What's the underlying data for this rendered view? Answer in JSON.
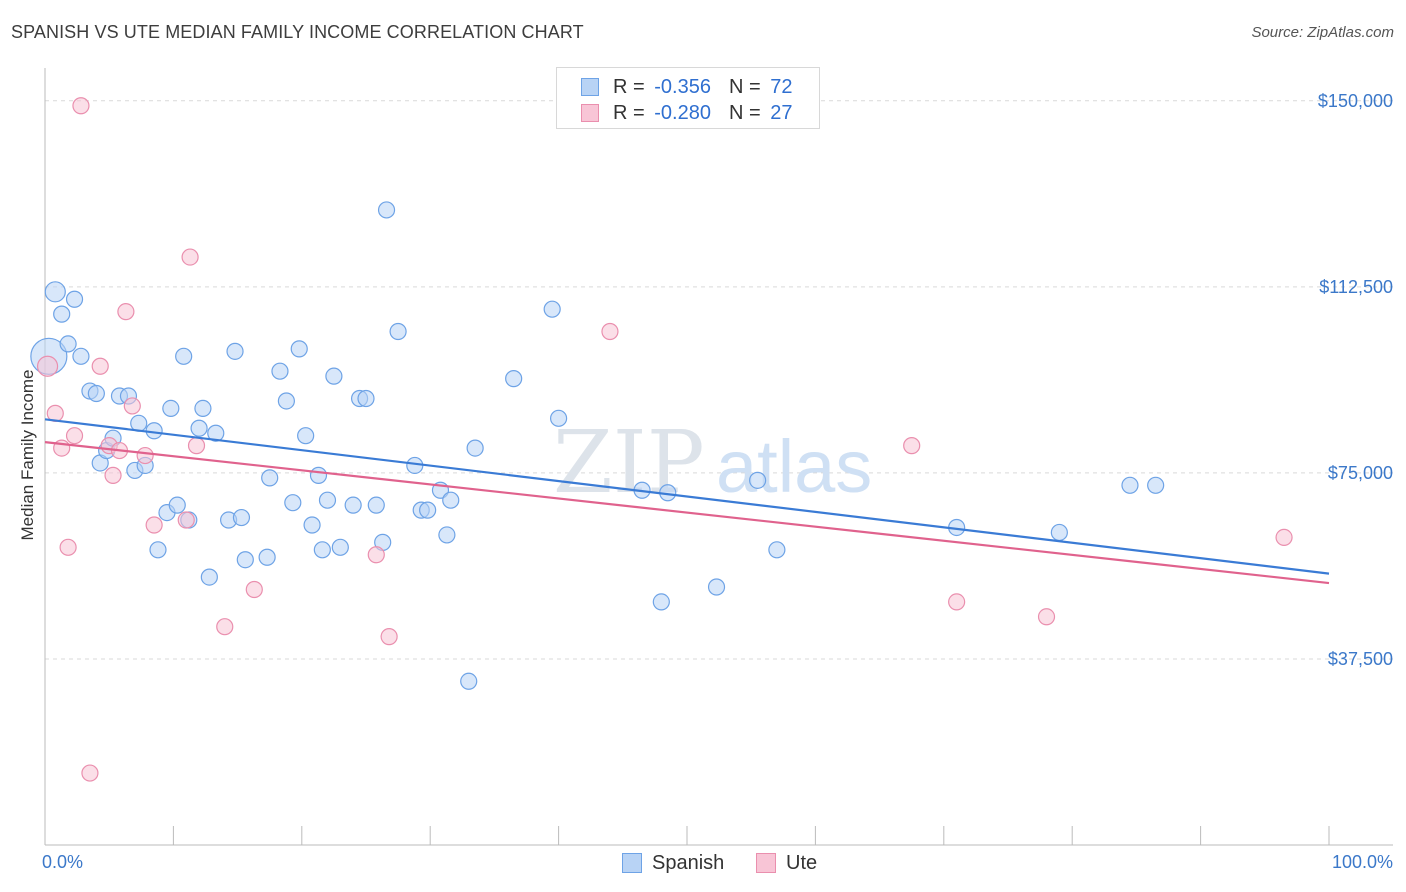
{
  "header": {
    "title": "SPANISH VS UTE MEDIAN FAMILY INCOME CORRELATION CHART",
    "source": "Source: ZipAtlas.com"
  },
  "watermark": {
    "zip": "ZIP",
    "atlas": "atlas"
  },
  "legend": {
    "r_label": "R =",
    "n_label": "N =",
    "rows": [
      {
        "name": "Spanish",
        "r": "-0.356",
        "n": "72",
        "fill": "#b8d3f5",
        "stroke": "#6ea3e6"
      },
      {
        "name": "Ute",
        "r": "-0.280",
        "n": "27",
        "fill": "#f8c5d6",
        "stroke": "#ea8fae"
      }
    ]
  },
  "chart_data": {
    "type": "scatter",
    "title": "SPANISH VS UTE MEDIAN FAMILY INCOME CORRELATION CHART",
    "xlabel": "",
    "ylabel": "Median Family Income",
    "xlim": [
      0,
      100
    ],
    "ylim": [
      0,
      155000
    ],
    "x_tick_labels": [
      "0.0%",
      "100.0%"
    ],
    "y_ticks": [
      {
        "value": 37500,
        "label": "$37,500"
      },
      {
        "value": 75000,
        "label": "$75,000"
      },
      {
        "value": 112500,
        "label": "$112,500"
      },
      {
        "value": 150000,
        "label": "$150,000"
      }
    ],
    "grid": true,
    "series": [
      {
        "name": "Spanish",
        "color": "#3a7bd5",
        "fill": "#b8d3f5",
        "trend": {
          "x": [
            0,
            100
          ],
          "y": [
            85800,
            54700
          ]
        },
        "points": [
          [
            0.3,
            98500,
            18
          ],
          [
            0.8,
            111500,
            10
          ],
          [
            1.3,
            107000,
            8
          ],
          [
            1.8,
            101000,
            8
          ],
          [
            2.3,
            110000,
            8
          ],
          [
            2.8,
            98500,
            8
          ],
          [
            3.5,
            91500,
            8
          ],
          [
            4.0,
            91000,
            8
          ],
          [
            4.3,
            77000,
            8
          ],
          [
            4.8,
            79500,
            8
          ],
          [
            5.3,
            82000,
            8
          ],
          [
            5.8,
            90500,
            8
          ],
          [
            6.5,
            90500,
            8
          ],
          [
            7.0,
            75500,
            8
          ],
          [
            7.3,
            85000,
            8
          ],
          [
            7.8,
            76500,
            8
          ],
          [
            8.5,
            83500,
            8
          ],
          [
            8.8,
            59500,
            8
          ],
          [
            9.5,
            67000,
            8
          ],
          [
            9.8,
            88000,
            8
          ],
          [
            10.3,
            68500,
            8
          ],
          [
            10.8,
            98500,
            8
          ],
          [
            11.2,
            65500,
            8
          ],
          [
            12.0,
            84000,
            8
          ],
          [
            12.3,
            88000,
            8
          ],
          [
            12.8,
            54000,
            8
          ],
          [
            13.3,
            83000,
            8
          ],
          [
            14.3,
            65500,
            8
          ],
          [
            14.8,
            99500,
            8
          ],
          [
            15.3,
            66000,
            8
          ],
          [
            15.6,
            57500,
            8
          ],
          [
            17.3,
            58000,
            8
          ],
          [
            17.5,
            74000,
            8
          ],
          [
            18.3,
            95500,
            8
          ],
          [
            18.8,
            89500,
            8
          ],
          [
            19.3,
            69000,
            8
          ],
          [
            19.8,
            100000,
            8
          ],
          [
            20.3,
            82500,
            8
          ],
          [
            20.8,
            64500,
            8
          ],
          [
            21.3,
            74500,
            8
          ],
          [
            21.6,
            59500,
            8
          ],
          [
            22.0,
            69500,
            8
          ],
          [
            22.5,
            94500,
            8
          ],
          [
            23.0,
            60000,
            8
          ],
          [
            24.0,
            68500,
            8
          ],
          [
            24.5,
            90000,
            8
          ],
          [
            25.0,
            90000,
            8
          ],
          [
            25.8,
            68500,
            8
          ],
          [
            26.3,
            61000,
            8
          ],
          [
            26.6,
            128000,
            8
          ],
          [
            27.5,
            103500,
            8
          ],
          [
            28.8,
            76500,
            8
          ],
          [
            29.3,
            67500,
            8
          ],
          [
            29.8,
            67500,
            8
          ],
          [
            30.8,
            71500,
            8
          ],
          [
            31.3,
            62500,
            8
          ],
          [
            31.6,
            69500,
            8
          ],
          [
            33.0,
            33000,
            8
          ],
          [
            33.5,
            80000,
            8
          ],
          [
            36.5,
            94000,
            8
          ],
          [
            39.5,
            108000,
            8
          ],
          [
            40.0,
            86000,
            8
          ],
          [
            46.5,
            71500,
            8
          ],
          [
            48.0,
            49000,
            8
          ],
          [
            48.5,
            71000,
            8
          ],
          [
            52.3,
            52000,
            8
          ],
          [
            55.5,
            73500,
            8
          ],
          [
            57.0,
            59500,
            8
          ],
          [
            71.0,
            64000,
            8
          ],
          [
            79.0,
            63000,
            8
          ],
          [
            84.5,
            72500,
            8
          ],
          [
            86.5,
            72500,
            8
          ]
        ]
      },
      {
        "name": "Ute",
        "color": "#e0628d",
        "fill": "#f8c5d6",
        "trend": {
          "x": [
            0,
            100
          ],
          "y": [
            81200,
            52800
          ]
        },
        "points": [
          [
            0.2,
            96500,
            10
          ],
          [
            0.8,
            87000,
            8
          ],
          [
            1.3,
            80000,
            8
          ],
          [
            1.8,
            60000,
            8
          ],
          [
            2.3,
            82500,
            8
          ],
          [
            2.8,
            149000,
            8
          ],
          [
            3.5,
            14500,
            8
          ],
          [
            4.3,
            96500,
            8
          ],
          [
            5.0,
            80500,
            8
          ],
          [
            5.3,
            74500,
            8
          ],
          [
            5.8,
            79500,
            8
          ],
          [
            6.3,
            107500,
            8
          ],
          [
            6.8,
            88500,
            8
          ],
          [
            7.8,
            78500,
            8
          ],
          [
            8.5,
            64500,
            8
          ],
          [
            11.0,
            65500,
            8
          ],
          [
            11.3,
            118500,
            8
          ],
          [
            11.8,
            80500,
            8
          ],
          [
            14.0,
            44000,
            8
          ],
          [
            16.3,
            51500,
            8
          ],
          [
            25.8,
            58500,
            8
          ],
          [
            26.8,
            42000,
            8
          ],
          [
            44.0,
            103500,
            8
          ],
          [
            67.5,
            80500,
            8
          ],
          [
            71.0,
            49000,
            8
          ],
          [
            78.0,
            46000,
            8
          ],
          [
            96.5,
            62000,
            8
          ]
        ]
      }
    ]
  }
}
